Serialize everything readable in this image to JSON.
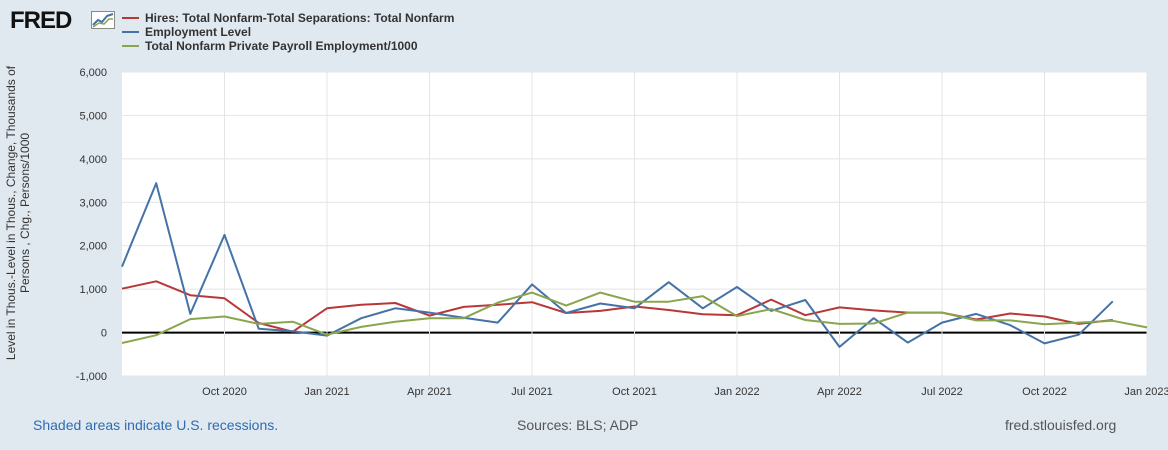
{
  "logo": {
    "text": "FRED"
  },
  "footer": {
    "recession_note": "Shaded areas indicate U.S. recessions.",
    "sources": "Sources: BLS; ADP",
    "site": "fred.stlouisfed.org"
  },
  "chart_data": {
    "type": "line",
    "title": "",
    "xlabel": "",
    "ylabel": "Level in Thous.-Level in Thous., Change, Thousands of Persons , Chg., Persons/1000",
    "ylim": [
      -1000,
      6000
    ],
    "y_ticks": [
      6000,
      5000,
      4000,
      3000,
      2000,
      1000,
      0,
      -1000
    ],
    "y_tick_labels": [
      "6,000",
      "5,000",
      "4,000",
      "3,000",
      "2,000",
      "1,000",
      "0",
      "-1,000"
    ],
    "grid": true,
    "legend_position": "top-left",
    "x": [
      "2020-07",
      "2020-08",
      "2020-09",
      "2020-10",
      "2020-11",
      "2020-12",
      "2021-01",
      "2021-02",
      "2021-03",
      "2021-04",
      "2021-05",
      "2021-06",
      "2021-07",
      "2021-08",
      "2021-09",
      "2021-10",
      "2021-11",
      "2021-12",
      "2022-01",
      "2022-02",
      "2022-03",
      "2022-04",
      "2022-05",
      "2022-06",
      "2022-07",
      "2022-08",
      "2022-09",
      "2022-10",
      "2022-11",
      "2022-12",
      "2023-01"
    ],
    "x_ticks": [
      {
        "index": 3,
        "label": "Oct 2020"
      },
      {
        "index": 6,
        "label": "Jan 2021"
      },
      {
        "index": 9,
        "label": "Apr 2021"
      },
      {
        "index": 12,
        "label": "Jul 2021"
      },
      {
        "index": 15,
        "label": "Oct 2021"
      },
      {
        "index": 18,
        "label": "Jan 2022"
      },
      {
        "index": 21,
        "label": "Apr 2022"
      },
      {
        "index": 24,
        "label": "Jul 2022"
      },
      {
        "index": 27,
        "label": "Oct 2022"
      },
      {
        "index": 30,
        "label": "Jan 2023"
      }
    ],
    "series": [
      {
        "name": "Hires: Total Nonfarm-Total Separations: Total Nonfarm",
        "color": "#b83838",
        "values": [
          1010,
          1180,
          860,
          790,
          220,
          20,
          560,
          640,
          680,
          390,
          590,
          640,
          700,
          450,
          500,
          600,
          520,
          420,
          400,
          760,
          400,
          580,
          510,
          460,
          460,
          300,
          440,
          370,
          200,
          290,
          null
        ]
      },
      {
        "name": "Employment Level",
        "color": "#4572a7",
        "values": [
          1520,
          3440,
          430,
          2250,
          90,
          30,
          -70,
          330,
          560,
          460,
          340,
          230,
          1110,
          450,
          670,
          560,
          1160,
          560,
          1050,
          500,
          750,
          -330,
          330,
          -230,
          230,
          430,
          170,
          -250,
          -50,
          720,
          null
        ]
      },
      {
        "name": "Total Nonfarm Private Payroll Employment/1000",
        "color": "#89a54e",
        "values": [
          -240,
          -60,
          310,
          370,
          200,
          250,
          -50,
          130,
          250,
          330,
          330,
          690,
          920,
          620,
          920,
          710,
          710,
          840,
          380,
          540,
          290,
          200,
          210,
          460,
          460,
          280,
          280,
          190,
          230,
          270,
          120
        ]
      }
    ]
  }
}
